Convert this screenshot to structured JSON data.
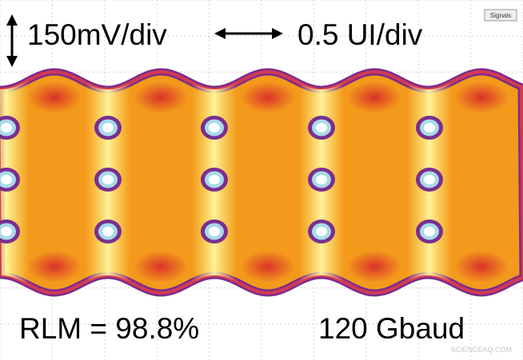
{
  "scale": {
    "vertical": "150mV/div",
    "horizontal": "0.5 UI/div"
  },
  "button": "Signals",
  "metrics": {
    "rlm": "RLM = 98.8%",
    "rate": "120 Gbaud"
  },
  "watermark": "SCIENCEAQ.COM"
}
